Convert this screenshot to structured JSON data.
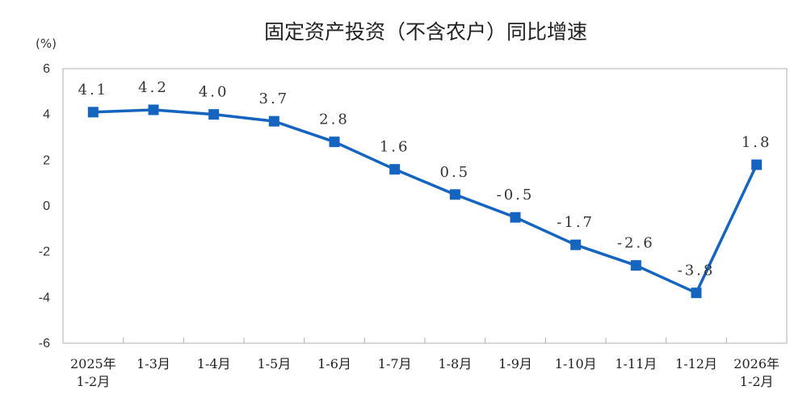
{
  "chart_data": {
    "type": "line",
    "title": "固定资产投资（不含农户）同比增速",
    "unit_label": "(%)",
    "categories": [
      [
        "2025年",
        "1-2月"
      ],
      [
        "1-3月"
      ],
      [
        "1-4月"
      ],
      [
        "1-5月"
      ],
      [
        "1-6月"
      ],
      [
        "1-7月"
      ],
      [
        "1-8月"
      ],
      [
        "1-9月"
      ],
      [
        "1-10月"
      ],
      [
        "1-11月"
      ],
      [
        "1-12月"
      ],
      [
        "2026年",
        "1-2月"
      ]
    ],
    "values": [
      4.1,
      4.2,
      4.0,
      3.7,
      2.8,
      1.6,
      0.5,
      -0.5,
      -1.7,
      -2.6,
      -3.8,
      1.8
    ],
    "data_labels": [
      "4.1",
      "4.2",
      "4.0",
      "3.7",
      "2.8",
      "1.6",
      "0.5",
      "-0.5",
      "-1.7",
      "-2.6",
      "-3.8",
      "1.8"
    ],
    "y_ticks": [
      "6",
      "4",
      "2",
      "0",
      "-2",
      "-4",
      "-6"
    ],
    "ylim": [
      -6,
      6
    ],
    "grid": false,
    "colors": {
      "line": "#1565c0",
      "marker": "#1565c0",
      "axis": "#b0b0b0"
    }
  }
}
